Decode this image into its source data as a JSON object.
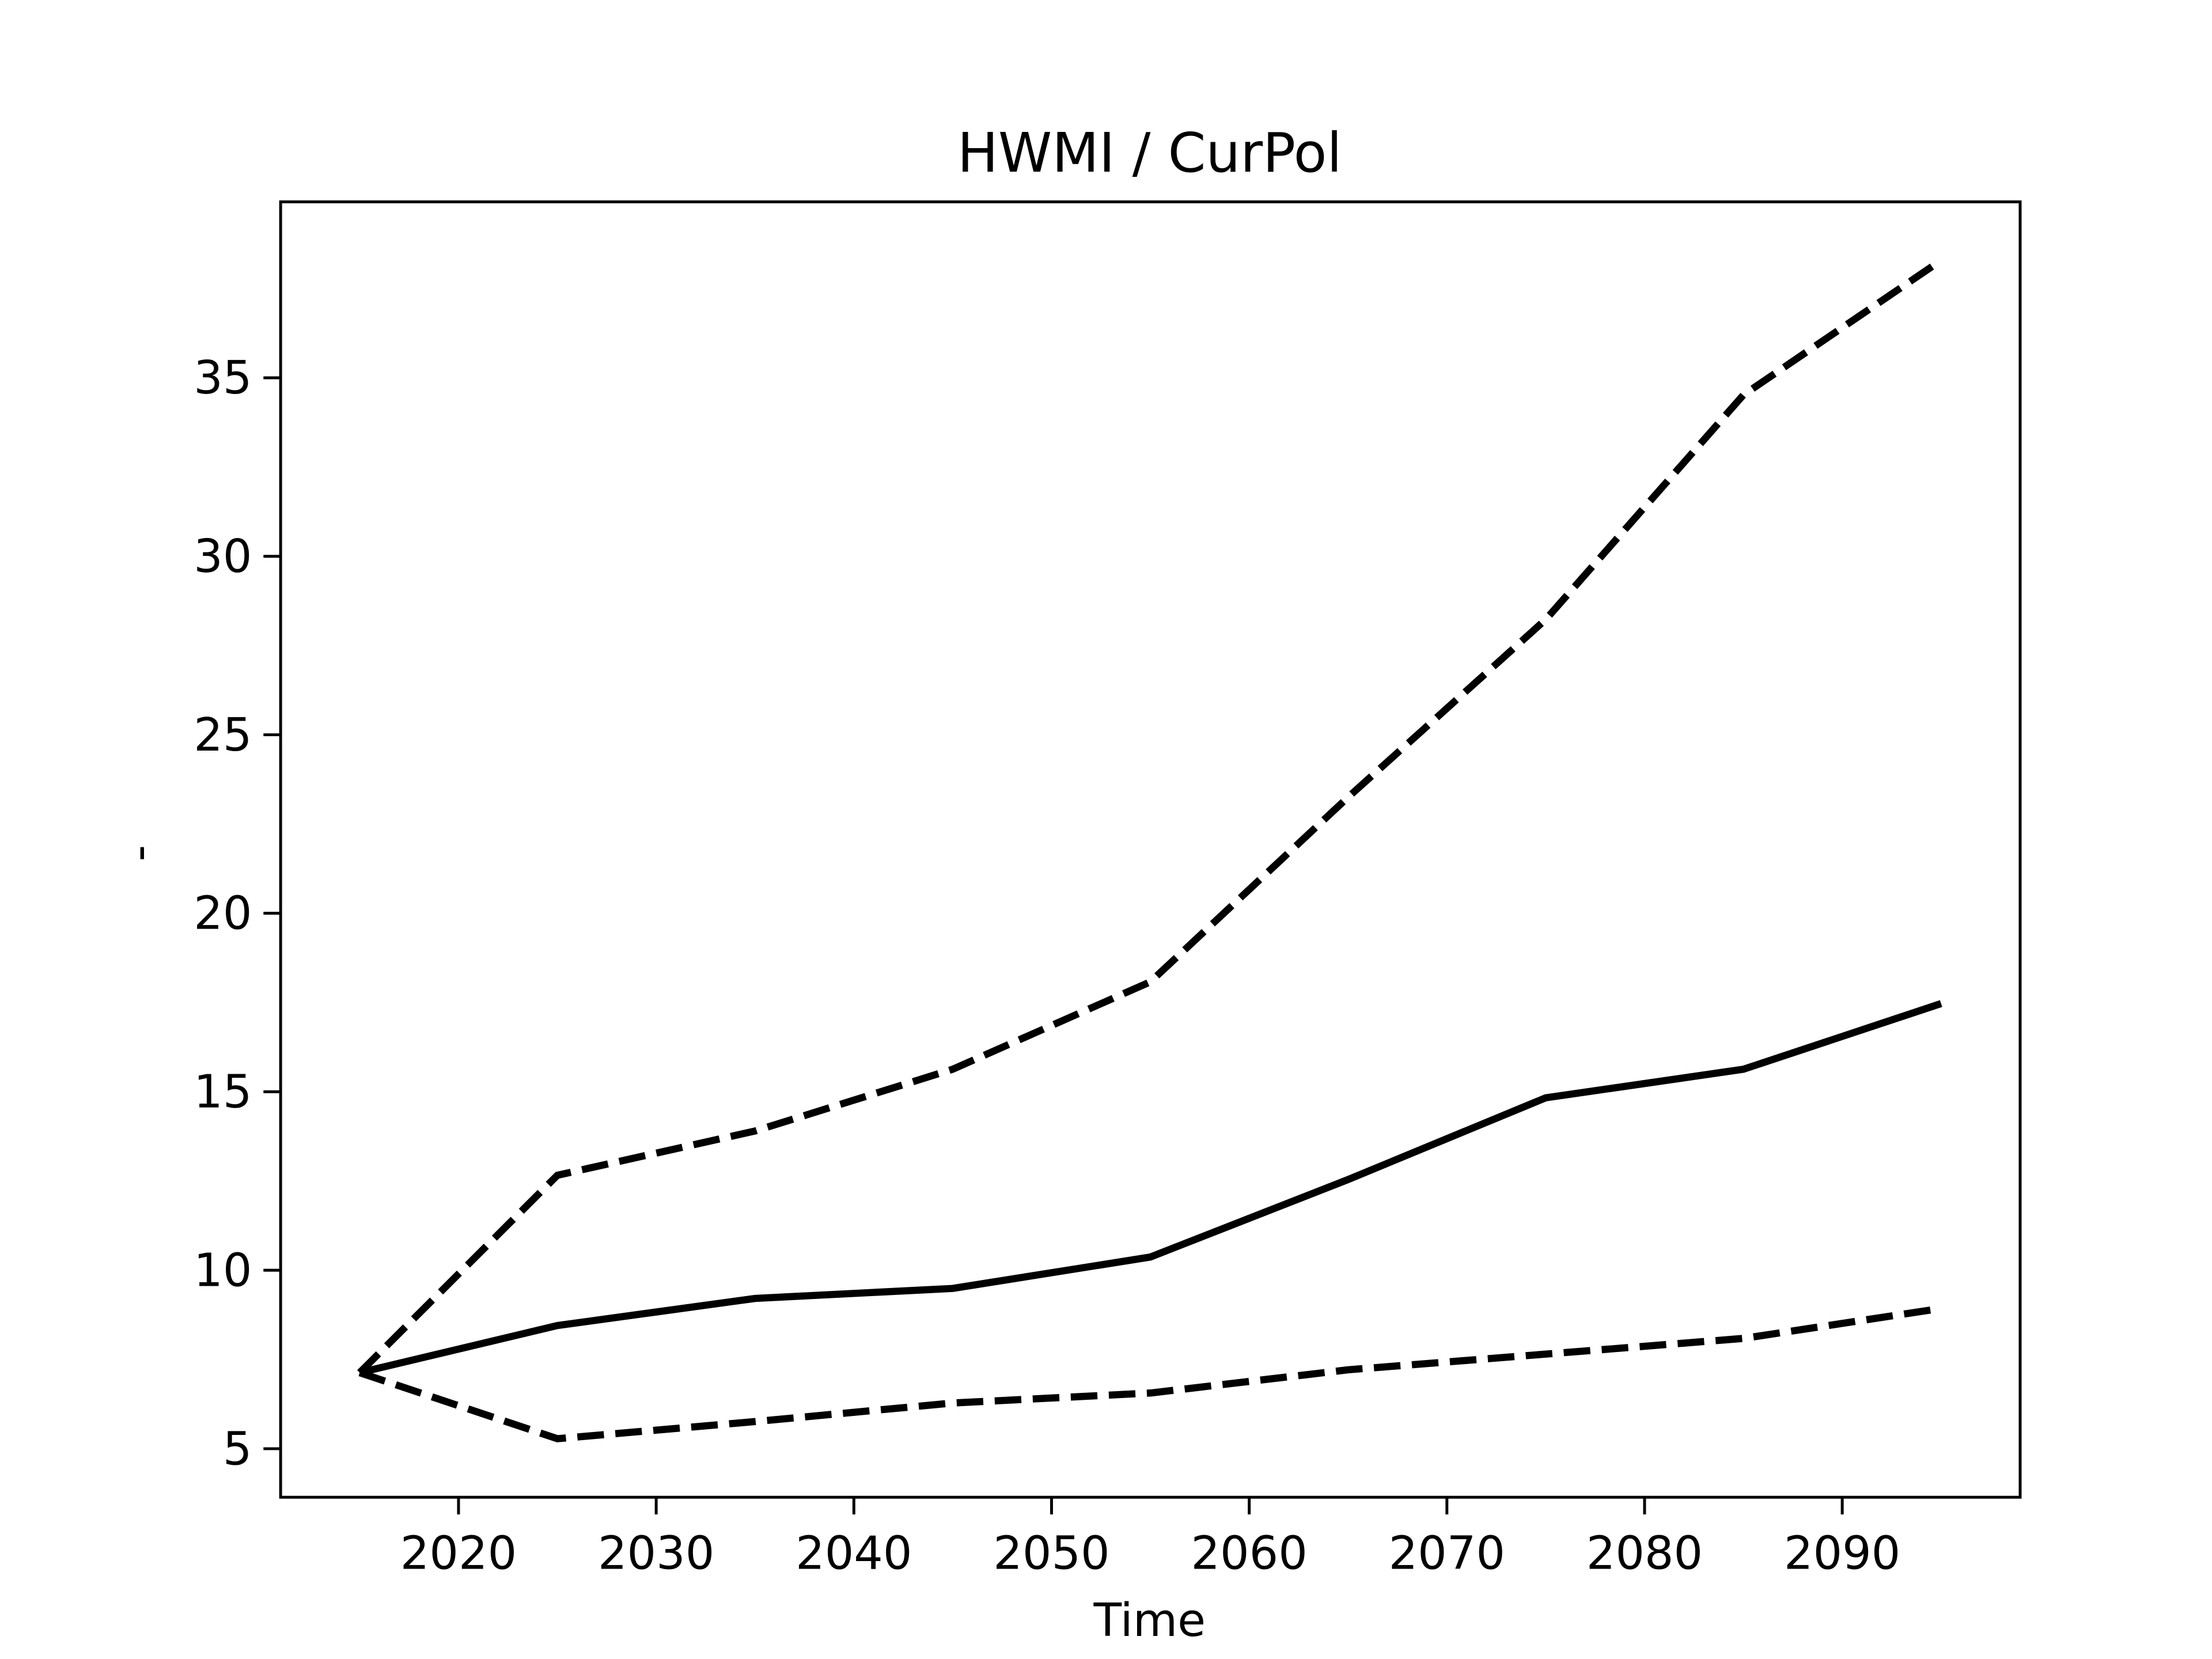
{
  "chart_data": {
    "type": "line",
    "title": "HWMI / CurPol",
    "x_label": "Time",
    "y_label": "-",
    "x": [
      2015,
      2025,
      2035,
      2045,
      2055,
      2065,
      2075,
      2085,
      2095
    ],
    "series": [
      {
        "color": "#000000",
        "linestyle": "solid",
        "values": [
          7.13,
          8.45,
          9.21,
          9.49,
          10.37,
          12.54,
          14.83,
          15.63,
          17.47
        ]
      },
      {
        "color": "#000000",
        "linestyle": "dashed",
        "values": [
          7.13,
          12.66,
          13.9,
          15.63,
          18.08,
          23.25,
          28.23,
          34.52,
          38.29
        ]
      },
      {
        "color": "#000000",
        "linestyle": "dashed",
        "values": [
          7.13,
          5.28,
          5.76,
          6.28,
          6.56,
          7.21,
          7.65,
          8.09,
          8.93
        ]
      }
    ],
    "xlim": [
      2011,
      2099
    ],
    "ylim": [
      3.64,
      39.93
    ],
    "xticks": [
      2020,
      2030,
      2040,
      2050,
      2060,
      2070,
      2080,
      2090
    ],
    "yticks": [
      5,
      10,
      15,
      20,
      25,
      30,
      35
    ],
    "grid": false
  }
}
